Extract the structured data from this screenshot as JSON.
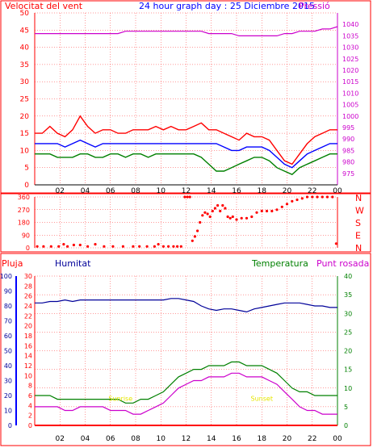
{
  "header": {
    "left_label": "Velocitat del vent",
    "title": "24 hour graph day : 25 Diciembre 2015",
    "right_label": "Pressió"
  },
  "colors": {
    "red": "#ff0000",
    "blue": "#0000ff",
    "green": "#008000",
    "magenta": "#cc00cc",
    "navy": "#000099",
    "yellow": "#e6e600",
    "grid": "#ff0000"
  },
  "chart_data": [
    {
      "type": "line",
      "panel": "wind",
      "x_ticks": [
        "02",
        "04",
        "06",
        "08",
        "10",
        "12",
        "14",
        "16",
        "18",
        "20",
        "22",
        "00"
      ],
      "y_left_ticks": [
        0,
        5,
        10,
        15,
        20,
        25,
        30,
        35,
        40,
        45,
        50
      ],
      "y_right_ticks": [
        975,
        980,
        985,
        990,
        995,
        1000,
        1005,
        1010,
        1015,
        1020,
        1025,
        1030,
        1035,
        1040
      ],
      "ylim_left": [
        0,
        50
      ],
      "ylim_right": [
        970,
        1045
      ],
      "series": [
        {
          "name": "Velocitat del vent",
          "color": "red",
          "values": [
            15,
            15,
            17,
            15,
            14,
            16,
            20,
            17,
            15,
            16,
            16,
            15,
            15,
            16,
            16,
            16,
            17,
            16,
            17,
            16,
            16,
            17,
            18,
            16,
            16,
            15,
            14,
            13,
            15,
            14,
            14,
            13,
            10,
            7,
            6,
            9,
            12,
            14,
            15,
            16,
            16
          ]
        },
        {
          "name": "blue",
          "color": "blue",
          "values": [
            12,
            12,
            12,
            12,
            11,
            12,
            13,
            12,
            11,
            12,
            12,
            12,
            12,
            12,
            12,
            12,
            12,
            12,
            12,
            12,
            12,
            12,
            12,
            12,
            12,
            11,
            10,
            10,
            11,
            11,
            11,
            10,
            8,
            6,
            5,
            7,
            9,
            10,
            11,
            12,
            12
          ]
        },
        {
          "name": "green",
          "color": "green",
          "values": [
            9,
            9,
            9,
            8,
            8,
            8,
            9,
            9,
            8,
            8,
            9,
            9,
            8,
            9,
            9,
            8,
            9,
            9,
            9,
            9,
            9,
            9,
            8,
            6,
            4,
            4,
            5,
            6,
            7,
            8,
            8,
            7,
            5,
            4,
            3,
            5,
            6,
            7,
            8,
            9,
            9
          ]
        },
        {
          "name": "Pressió",
          "color": "magenta",
          "values": [
            1036,
            1036,
            1036,
            1036,
            1036,
            1036,
            1036,
            1036,
            1036,
            1036,
            1036,
            1036,
            1037,
            1037,
            1037,
            1037,
            1037,
            1037,
            1037,
            1037,
            1037,
            1037,
            1037,
            1036,
            1036,
            1036,
            1036,
            1035,
            1035,
            1035,
            1035,
            1035,
            1035,
            1036,
            1036,
            1037,
            1037,
            1037,
            1038,
            1038,
            1039
          ]
        }
      ],
      "title": "24 hour graph day : 25 Diciembre 2015"
    },
    {
      "type": "scatter",
      "panel": "direction",
      "y_ticks": [
        0,
        90,
        180,
        270,
        360
      ],
      "y_right_labels": [
        "N",
        "W",
        "S",
        "E",
        "N"
      ],
      "ylim": [
        0,
        360
      ],
      "series": [
        {
          "name": "direction",
          "color": "red",
          "x": [
            0.2,
            0.7,
            1.3,
            1.9,
            2.3,
            2.6,
            3.1,
            3.6,
            4.2,
            4.8,
            5.5,
            6.2,
            7.0,
            7.8,
            8.3,
            8.9,
            9.5,
            9.8,
            10.2,
            10.6,
            11.0,
            11.3,
            11.6,
            11.9,
            12.1,
            12.3,
            12.5,
            12.7,
            12.9,
            13.1,
            13.3,
            13.5,
            13.7,
            13.9,
            14.1,
            14.3,
            14.5,
            14.7,
            14.9,
            15.1,
            15.3,
            15.5,
            15.7,
            16.0,
            16.4,
            16.8,
            17.2,
            17.6,
            18.0,
            18.4,
            18.8,
            19.2,
            19.6,
            20.0,
            20.4,
            20.8,
            21.2,
            21.6,
            22.0,
            22.4,
            22.8,
            23.2,
            23.6,
            23.9
          ],
          "y": [
            10,
            10,
            10,
            10,
            25,
            10,
            20,
            20,
            10,
            25,
            10,
            10,
            10,
            10,
            10,
            10,
            10,
            25,
            10,
            10,
            10,
            10,
            10,
            360,
            360,
            360,
            50,
            80,
            120,
            180,
            230,
            250,
            240,
            220,
            260,
            280,
            300,
            260,
            300,
            280,
            220,
            210,
            220,
            200,
            210,
            210,
            220,
            250,
            260,
            260,
            260,
            270,
            290,
            310,
            330,
            340,
            350,
            360,
            360,
            360,
            360,
            360,
            360,
            30
          ]
        }
      ]
    },
    {
      "type": "line",
      "panel": "humidity_temperature",
      "left_labels": {
        "pluja": "Pluja",
        "humitat": "Humitat"
      },
      "right_labels": {
        "temperatura": "Temperatura",
        "punt_rosada": "Punt rosada"
      },
      "y_pluja_ticks": [
        0,
        2,
        4,
        6,
        8,
        10,
        12,
        14,
        16,
        18,
        20,
        22,
        24,
        26,
        28,
        30
      ],
      "y_humitat_ticks": [
        0,
        10,
        20,
        30,
        40,
        50,
        60,
        70,
        80,
        90,
        100
      ],
      "y_temp_ticks": [
        0,
        5,
        10,
        15,
        20,
        25,
        30,
        35,
        40
      ],
      "annotations": [
        {
          "text": "Sunrise",
          "hour": 6.8,
          "value": 7
        },
        {
          "text": "Sunset",
          "hour": 18.0,
          "value": 7
        }
      ],
      "series": [
        {
          "name": "Humitat",
          "color": "navy",
          "axis": "humitat",
          "values": [
            82,
            82,
            83,
            83,
            84,
            83,
            84,
            84,
            84,
            84,
            84,
            84,
            84,
            84,
            84,
            84,
            84,
            84,
            85,
            85,
            84,
            83,
            80,
            78,
            77,
            78,
            78,
            77,
            76,
            78,
            79,
            80,
            81,
            82,
            82,
            82,
            81,
            80,
            80,
            79,
            79
          ]
        },
        {
          "name": "Temperatura",
          "color": "green",
          "axis": "temp",
          "values": [
            8,
            8,
            8,
            7,
            7,
            7,
            7,
            7,
            7,
            7,
            7,
            7,
            6,
            6,
            7,
            7,
            8,
            9,
            11,
            13,
            14,
            15,
            15,
            16,
            16,
            16,
            17,
            17,
            16,
            16,
            16,
            15,
            14,
            12,
            10,
            9,
            9,
            8,
            8,
            8,
            8
          ]
        },
        {
          "name": "Punt rosada",
          "color": "magenta",
          "axis": "temp",
          "values": [
            5,
            5,
            5,
            5,
            4,
            4,
            5,
            5,
            5,
            5,
            4,
            4,
            4,
            3,
            3,
            4,
            5,
            6,
            8,
            10,
            11,
            12,
            12,
            13,
            13,
            13,
            14,
            14,
            13,
            13,
            13,
            12,
            11,
            9,
            7,
            5,
            4,
            4,
            3,
            3,
            3
          ]
        },
        {
          "name": "Pluja",
          "color": "red",
          "axis": "pluja",
          "values": [
            0,
            0,
            0,
            0,
            0,
            0,
            0,
            0,
            0,
            0,
            0,
            0,
            0,
            0,
            0,
            0,
            0,
            0,
            0,
            0,
            0,
            0,
            0,
            0,
            0,
            0,
            0,
            0,
            0,
            0,
            0,
            0,
            0,
            0,
            0,
            0,
            0,
            0,
            0,
            0,
            0
          ]
        }
      ]
    }
  ]
}
